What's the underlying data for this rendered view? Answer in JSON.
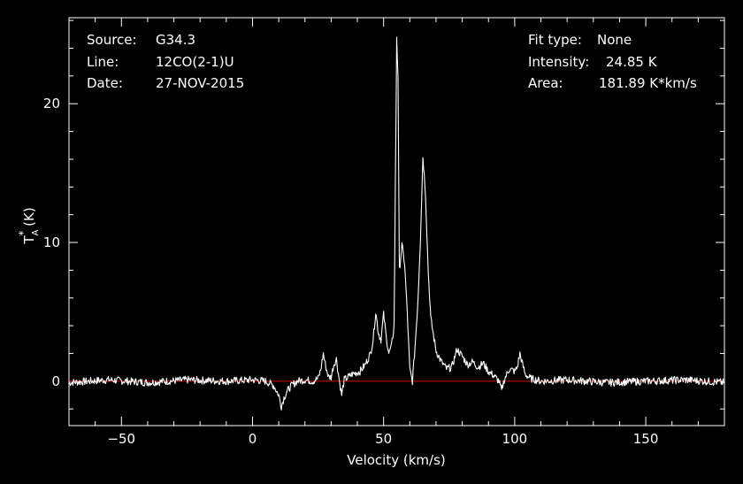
{
  "chart_data": {
    "type": "line",
    "title": "",
    "xlabel": "Velocity (km/s)",
    "ylabel": "T_A^* (K)",
    "ylabel_main": "T",
    "ylabel_sub": "A",
    "ylabel_sup": "*",
    "ylabel_unit": "(K)",
    "xlim": [
      -70,
      180
    ],
    "ylim": [
      -3.2,
      26.2
    ],
    "xticks": [
      -50,
      0,
      50,
      100,
      150
    ],
    "xtick_labels": [
      "−50",
      "0",
      "50",
      "100",
      "150"
    ],
    "yticks": [
      0,
      10,
      20
    ],
    "ytick_labels": [
      "0",
      "10",
      "20"
    ],
    "grid": false,
    "colors": {
      "spectrum": "#ffffff",
      "baseline": "#d00000",
      "axes": "#ffffff",
      "background": "#000000"
    },
    "baseline_value": 0,
    "info_left": [
      {
        "label": "Source:",
        "value": "G34.3"
      },
      {
        "label": "Line:",
        "value": "12CO(2-1)U"
      },
      {
        "label": "Date:",
        "value": "27-NOV-2015"
      }
    ],
    "info_right": [
      {
        "label": "Fit type:",
        "value": "None"
      },
      {
        "label": "Intensity:",
        "value": "24.85 K"
      },
      {
        "label": "Area:",
        "value": "181.89 K*km/s"
      }
    ],
    "series": [
      {
        "x": [
          -70,
          -55,
          -40,
          -25,
          -10,
          0,
          5,
          8,
          10,
          11,
          12,
          13,
          14,
          15,
          17,
          20,
          23,
          25,
          26,
          27,
          28,
          29,
          30,
          31,
          32,
          33,
          34,
          35,
          38,
          41,
          43,
          45,
          46,
          47,
          48,
          49,
          50,
          51,
          52,
          53,
          54,
          55,
          55.5,
          56,
          57,
          58,
          59,
          60,
          61,
          62,
          63,
          64,
          65,
          66,
          67,
          68,
          70,
          72,
          74,
          76,
          78,
          80,
          82,
          84,
          86,
          88,
          90,
          92,
          94,
          95,
          96,
          98,
          100,
          101,
          102,
          103,
          104,
          106,
          110,
          120,
          135,
          150,
          165,
          180
        ],
        "y": [
          -0.1,
          0.1,
          -0.1,
          0.1,
          0,
          0.1,
          0,
          -0.3,
          -1.0,
          -1.8,
          -1.2,
          -0.8,
          -0.5,
          -0.3,
          0,
          0.1,
          0,
          0.2,
          0.8,
          2.0,
          1.0,
          0.3,
          0.3,
          1.2,
          1.6,
          0.2,
          -1.0,
          0.1,
          0.5,
          0.7,
          1.2,
          2.0,
          3.0,
          5.0,
          3.5,
          3.0,
          4.8,
          3.2,
          2.0,
          2.5,
          4.0,
          24.85,
          22.0,
          8.0,
          9.8,
          8.5,
          5.0,
          0.8,
          0.0,
          2.5,
          5.5,
          10.0,
          16.2,
          13.5,
          8.0,
          4.5,
          2.2,
          1.4,
          0.9,
          1.0,
          2.3,
          1.8,
          1.2,
          1.4,
          1.0,
          1.3,
          0.7,
          0.4,
          0.0,
          -0.7,
          0.1,
          0.9,
          0.7,
          1.0,
          2.0,
          1.2,
          0.5,
          0.2,
          0.0,
          0.1,
          -0.1,
          0.0,
          0.1,
          -0.1
        ]
      }
    ]
  }
}
